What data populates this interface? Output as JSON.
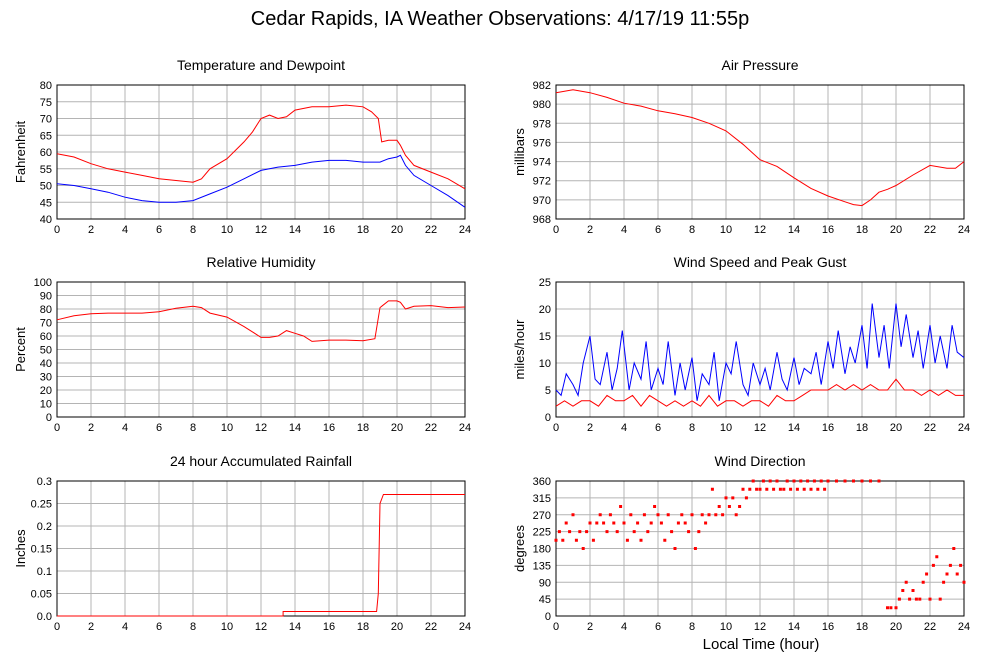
{
  "title": "Cedar Rapids, IA Weather Observations: 4/17/19 11:55p",
  "xlabel": "Local Time (hour)",
  "colors": {
    "red": "#ff0000",
    "blue": "#0000ff",
    "grid": "#b4b4b4",
    "axis": "#000000"
  },
  "chart_data": [
    {
      "id": "temp",
      "type": "line",
      "title": "Temperature and Dewpoint",
      "ylabel": "Fahrenheit",
      "xlim": [
        0,
        24
      ],
      "ylim": [
        40,
        80
      ],
      "xticks": [
        0,
        2,
        4,
        6,
        8,
        10,
        12,
        14,
        16,
        18,
        20,
        22,
        24
      ],
      "yticks": [
        40,
        45,
        50,
        55,
        60,
        65,
        70,
        75,
        80
      ],
      "grid": true,
      "series": [
        {
          "color": "red",
          "x": [
            0,
            1,
            2,
            3,
            4,
            5,
            6,
            7,
            8,
            8.5,
            9,
            10,
            11,
            11.5,
            12,
            12.5,
            13,
            13.5,
            14,
            15,
            16,
            17,
            18,
            18.5,
            18.9,
            19.1,
            19.5,
            20,
            20.2,
            20.5,
            21,
            22,
            23,
            24
          ],
          "y": [
            59.5,
            58.5,
            56.5,
            55,
            54,
            53,
            52,
            51.5,
            51,
            52,
            55,
            58,
            63,
            66,
            70,
            71,
            70,
            70.5,
            72.5,
            73.5,
            73.5,
            74,
            73.5,
            72,
            70,
            63,
            63.5,
            63.5,
            62,
            59,
            56,
            54,
            52,
            49
          ]
        },
        {
          "color": "blue",
          "x": [
            0,
            1,
            2,
            3,
            4,
            5,
            6,
            7,
            8,
            9,
            10,
            11,
            12,
            13,
            14,
            15,
            16,
            17,
            18,
            19,
            19.5,
            20,
            20.2,
            20.5,
            21,
            22,
            23,
            24
          ],
          "y": [
            50.5,
            50,
            49,
            48,
            46.5,
            45.5,
            45,
            45,
            45.5,
            47.5,
            49.5,
            52,
            54.5,
            55.5,
            56,
            57,
            57.5,
            57.5,
            57,
            57,
            58,
            58.5,
            59,
            56,
            53,
            50,
            47,
            43.5
          ]
        }
      ]
    },
    {
      "id": "pres",
      "type": "line",
      "title": "Air Pressure",
      "ylabel": "millibars",
      "xlim": [
        0,
        24
      ],
      "ylim": [
        968,
        982
      ],
      "xticks": [
        0,
        2,
        4,
        6,
        8,
        10,
        12,
        14,
        16,
        18,
        20,
        22,
        24
      ],
      "yticks": [
        968,
        970,
        972,
        974,
        976,
        978,
        980,
        982
      ],
      "grid": true,
      "series": [
        {
          "color": "red",
          "x": [
            0,
            1,
            2,
            3,
            4,
            5,
            6,
            7,
            8,
            9,
            10,
            11,
            11.5,
            12,
            13,
            14,
            15,
            16,
            17,
            17.5,
            18,
            18.5,
            19,
            19.5,
            20,
            21,
            22,
            23,
            23.5,
            24
          ],
          "y": [
            981.2,
            981.5,
            981.2,
            980.7,
            980.1,
            979.8,
            979.3,
            979,
            978.6,
            978,
            977.2,
            975.8,
            975,
            974.2,
            973.5,
            972.3,
            971.2,
            970.4,
            969.8,
            969.5,
            969.4,
            970,
            970.8,
            971.1,
            971.5,
            972.6,
            973.6,
            973.3,
            973.3,
            974
          ]
        }
      ]
    },
    {
      "id": "rh",
      "type": "line",
      "title": "Relative Humidity",
      "ylabel": "Percent",
      "xlim": [
        0,
        24
      ],
      "ylim": [
        0,
        100
      ],
      "xticks": [
        0,
        2,
        4,
        6,
        8,
        10,
        12,
        14,
        16,
        18,
        20,
        22,
        24
      ],
      "yticks": [
        0,
        10,
        20,
        30,
        40,
        50,
        60,
        70,
        80,
        90,
        100
      ],
      "grid": true,
      "series": [
        {
          "color": "red",
          "x": [
            0,
            1,
            2,
            3,
            4,
            5,
            6,
            7,
            8,
            8.5,
            9,
            10,
            11,
            11.5,
            12,
            12.5,
            13,
            13.5,
            14,
            14.5,
            15,
            16,
            17,
            18,
            18.7,
            19,
            19.5,
            20,
            20.2,
            20.5,
            21,
            22,
            23,
            24
          ],
          "y": [
            72,
            75,
            76.5,
            77,
            77,
            77,
            78,
            80.5,
            82,
            81,
            77,
            74,
            67,
            63,
            59,
            59,
            60,
            64,
            62,
            60,
            56,
            57,
            57,
            56.5,
            58,
            81,
            86,
            86,
            85,
            80,
            82,
            82.5,
            81,
            81.5
          ]
        }
      ]
    },
    {
      "id": "wind",
      "type": "line",
      "title": "Wind Speed and Peak Gust",
      "ylabel": "miles/hour",
      "xlim": [
        0,
        24
      ],
      "ylim": [
        0,
        25
      ],
      "xticks": [
        0,
        2,
        4,
        6,
        8,
        10,
        12,
        14,
        16,
        18,
        20,
        22,
        24
      ],
      "yticks": [
        0,
        5,
        10,
        15,
        20,
        25
      ],
      "grid": true,
      "series": [
        {
          "color": "blue",
          "x": [
            0,
            0.3,
            0.6,
            1,
            1.3,
            1.6,
            2,
            2.3,
            2.6,
            3,
            3.3,
            3.6,
            3.9,
            4.3,
            4.6,
            5,
            5.3,
            5.6,
            6,
            6.3,
            6.6,
            7,
            7.3,
            7.6,
            8,
            8.3,
            8.6,
            9,
            9.3,
            9.6,
            10,
            10.3,
            10.6,
            11,
            11.3,
            11.6,
            12,
            12.3,
            12.6,
            13,
            13.3,
            13.6,
            14,
            14.3,
            14.6,
            15,
            15.3,
            15.6,
            16,
            16.3,
            16.6,
            17,
            17.3,
            17.6,
            18,
            18.3,
            18.6,
            19,
            19.3,
            19.6,
            20,
            20.3,
            20.6,
            21,
            21.3,
            21.6,
            22,
            22.3,
            22.6,
            23,
            23.3,
            23.6,
            24
          ],
          "y": [
            5,
            4,
            8,
            6,
            4,
            10,
            15,
            7,
            6,
            12,
            5,
            9,
            16,
            5,
            10,
            7,
            14,
            5,
            9,
            6,
            14,
            4,
            10,
            5,
            11,
            3,
            8,
            6,
            12,
            3,
            10,
            8,
            14,
            6,
            4,
            10,
            6,
            9,
            5,
            12,
            7,
            5,
            11,
            6,
            9,
            8,
            12,
            6,
            14,
            9,
            16,
            8,
            13,
            10,
            17,
            9,
            21,
            11,
            17,
            9,
            21,
            13,
            19,
            11,
            16,
            9,
            17,
            10,
            15,
            9,
            17,
            12,
            11
          ]
        },
        {
          "color": "red",
          "x": [
            0,
            0.5,
            1,
            1.5,
            2,
            2.5,
            3,
            3.5,
            4,
            4.5,
            5,
            5.5,
            6,
            6.5,
            7,
            7.5,
            8,
            8.5,
            9,
            9.5,
            10,
            10.5,
            11,
            11.5,
            12,
            12.5,
            13,
            13.5,
            14,
            14.5,
            15,
            15.5,
            16,
            16.5,
            17,
            17.5,
            18,
            18.5,
            19,
            19.5,
            20,
            20.5,
            21,
            21.5,
            22,
            22.5,
            23,
            23.5,
            24
          ],
          "y": [
            2,
            3,
            2,
            3,
            3,
            2,
            4,
            3,
            3,
            4,
            2,
            4,
            3,
            2,
            3,
            2,
            3,
            2,
            4,
            2,
            3,
            3,
            2,
            3,
            3,
            2,
            4,
            3,
            3,
            4,
            5,
            5,
            5,
            6,
            5,
            6,
            5,
            6,
            5,
            5,
            7,
            5,
            5,
            4,
            5,
            4,
            5,
            4,
            4
          ]
        }
      ]
    },
    {
      "id": "rain",
      "type": "line",
      "title": "24 hour Accumulated Rainfall",
      "ylabel": "Inches",
      "xlim": [
        0,
        24
      ],
      "ylim": [
        0,
        0.3
      ],
      "xticks": [
        0,
        2,
        4,
        6,
        8,
        10,
        12,
        14,
        16,
        18,
        20,
        22,
        24
      ],
      "yticks": [
        0.0,
        0.05,
        0.1,
        0.15,
        0.2,
        0.25,
        0.3
      ],
      "ytick_labels": [
        "0.0",
        "0.05",
        "0.1",
        "0.15",
        "0.2",
        "0.25",
        "0.3"
      ],
      "grid": true,
      "series": [
        {
          "color": "red",
          "x": [
            0,
            13.3,
            13.3,
            18.8,
            18.9,
            19,
            19.2,
            24
          ],
          "y": [
            0,
            0,
            0.01,
            0.01,
            0.05,
            0.25,
            0.27,
            0.27
          ]
        }
      ]
    },
    {
      "id": "wdir",
      "type": "scatter",
      "title": "Wind Direction",
      "ylabel": "degrees",
      "xlim": [
        0,
        24
      ],
      "ylim": [
        0,
        360
      ],
      "xticks": [
        0,
        2,
        4,
        6,
        8,
        10,
        12,
        14,
        16,
        18,
        20,
        22,
        24
      ],
      "yticks": [
        0,
        45,
        90,
        135,
        180,
        225,
        270,
        315,
        360
      ],
      "grid": true,
      "series": [
        {
          "color": "red",
          "x": [
            0,
            0.2,
            0.4,
            0.6,
            0.8,
            1.0,
            1.2,
            1.4,
            1.6,
            1.8,
            2.0,
            2.2,
            2.4,
            2.6,
            2.8,
            3.0,
            3.2,
            3.4,
            3.6,
            3.8,
            4.0,
            4.2,
            4.4,
            4.6,
            4.8,
            5.0,
            5.2,
            5.4,
            5.6,
            5.8,
            6.0,
            6.2,
            6.4,
            6.6,
            6.8,
            7.0,
            7.2,
            7.4,
            7.6,
            7.8,
            8.0,
            8.2,
            8.4,
            8.6,
            8.8,
            9.0,
            9.2,
            9.4,
            9.6,
            9.8,
            10.0,
            10.2,
            10.4,
            10.6,
            10.8,
            11.0,
            11.2,
            11.4,
            11.6,
            11.8,
            12.0,
            12.2,
            12.4,
            12.6,
            12.8,
            13.0,
            13.2,
            13.4,
            13.6,
            13.8,
            14.0,
            14.2,
            14.4,
            14.6,
            14.8,
            15.0,
            15.2,
            15.4,
            15.6,
            15.8,
            16.0,
            16.5,
            17.0,
            17.5,
            18.0,
            18.5,
            19.0,
            19.5,
            19.7,
            20.0,
            20.2,
            20.4,
            20.6,
            20.8,
            21.0,
            21.2,
            21.4,
            21.6,
            21.8,
            22.0,
            22.2,
            22.4,
            22.6,
            22.8,
            23.0,
            23.2,
            23.4,
            23.6,
            23.8,
            24.0
          ],
          "y": [
            202,
            225,
            202,
            248,
            225,
            270,
            202,
            225,
            180,
            225,
            248,
            202,
            248,
            270,
            248,
            225,
            270,
            248,
            225,
            292,
            248,
            202,
            270,
            225,
            248,
            202,
            270,
            225,
            248,
            292,
            270,
            248,
            202,
            270,
            225,
            180,
            248,
            270,
            248,
            225,
            270,
            180,
            225,
            270,
            248,
            270,
            338,
            270,
            292,
            270,
            315,
            292,
            315,
            270,
            292,
            338,
            315,
            338,
            360,
            338,
            338,
            360,
            338,
            360,
            338,
            360,
            338,
            338,
            360,
            338,
            360,
            338,
            360,
            338,
            360,
            338,
            360,
            338,
            360,
            338,
            360,
            360,
            360,
            360,
            360,
            360,
            360,
            22,
            22,
            22,
            45,
            68,
            90,
            45,
            68,
            45,
            45,
            90,
            112,
            45,
            135,
            158,
            45,
            90,
            112,
            135,
            180,
            112,
            135,
            90
          ]
        }
      ]
    }
  ]
}
